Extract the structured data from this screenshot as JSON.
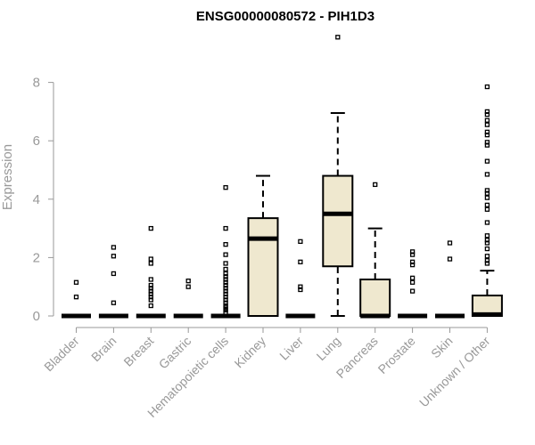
{
  "chart_data": {
    "type": "box",
    "title": "ENSG00000080572 - PIH1D3",
    "ylabel": "Expression",
    "xlabel": "",
    "ylim": [
      0,
      9.6
    ],
    "yticks": [
      0,
      2,
      4,
      6,
      8
    ],
    "box_fill": "#efe8cf",
    "box_stroke": "#000000",
    "axis_color": "#999999",
    "categories": [
      "Bladder",
      "Brain",
      "Breast",
      "Gastric",
      "Hematopoietic cells",
      "Kidney",
      "Liver",
      "Lung",
      "Pancreas",
      "Prostate",
      "Skin",
      "Unknown / Other"
    ],
    "boxes": [
      {
        "category": "Bladder",
        "min": 0,
        "q1": 0,
        "median": 0,
        "q3": 0,
        "max": 0,
        "outliers": [
          1.15,
          0.65
        ]
      },
      {
        "category": "Brain",
        "min": 0,
        "q1": 0,
        "median": 0,
        "q3": 0,
        "max": 0,
        "outliers": [
          2.35,
          2.05,
          1.45,
          0.45
        ]
      },
      {
        "category": "Breast",
        "min": 0,
        "q1": 0,
        "median": 0,
        "q3": 0,
        "max": 0,
        "outliers": [
          3.0,
          1.95,
          1.8,
          1.25,
          1.05,
          0.95,
          0.85,
          0.75,
          0.65,
          0.55,
          0.35
        ]
      },
      {
        "category": "Gastric",
        "min": 0,
        "q1": 0,
        "median": 0,
        "q3": 0,
        "max": 0,
        "outliers": [
          1.2,
          1.0
        ]
      },
      {
        "category": "Hematopoietic cells",
        "min": 0,
        "q1": 0,
        "median": 0,
        "q3": 0,
        "max": 0,
        "outliers": [
          4.4,
          3.0,
          2.45,
          2.1,
          1.8,
          1.6,
          1.45,
          1.35,
          1.25,
          1.15,
          1.05,
          0.95,
          0.85,
          0.75,
          0.65,
          0.55,
          0.45,
          0.35,
          0.28,
          0.2,
          0.12
        ]
      },
      {
        "category": "Kidney",
        "min": 0,
        "q1": 0,
        "median": 2.65,
        "q3": 3.35,
        "max": 4.8,
        "outliers": []
      },
      {
        "category": "Liver",
        "min": 0,
        "q1": 0,
        "median": 0,
        "q3": 0,
        "max": 0,
        "outliers": [
          2.55,
          1.85,
          1.0,
          0.9
        ]
      },
      {
        "category": "Lung",
        "min": 0,
        "q1": 1.7,
        "median": 3.5,
        "q3": 4.8,
        "max": 6.95,
        "outliers": [
          9.55
        ]
      },
      {
        "category": "Pancreas",
        "min": 0,
        "q1": 0,
        "median": 0,
        "q3": 1.25,
        "max": 3.0,
        "outliers": [
          4.5
        ]
      },
      {
        "category": "Prostate",
        "min": 0,
        "q1": 0,
        "median": 0,
        "q3": 0,
        "max": 0,
        "outliers": [
          2.2,
          2.1,
          1.85,
          1.75,
          1.3,
          1.15,
          0.85
        ]
      },
      {
        "category": "Skin",
        "min": 0,
        "q1": 0,
        "median": 0,
        "q3": 0,
        "max": 0,
        "outliers": [
          2.5,
          1.95
        ]
      },
      {
        "category": "Unknown / Other",
        "min": 0,
        "q1": 0,
        "median": 0.05,
        "q3": 0.7,
        "max": 1.55,
        "outliers": [
          7.85,
          7.0,
          6.9,
          6.7,
          6.55,
          6.3,
          6.2,
          5.95,
          5.85,
          5.3,
          4.85,
          4.3,
          4.2,
          4.05,
          3.8,
          3.65,
          3.2,
          2.75,
          2.6,
          2.5,
          2.3,
          2.05,
          1.9,
          1.8
        ]
      }
    ]
  }
}
